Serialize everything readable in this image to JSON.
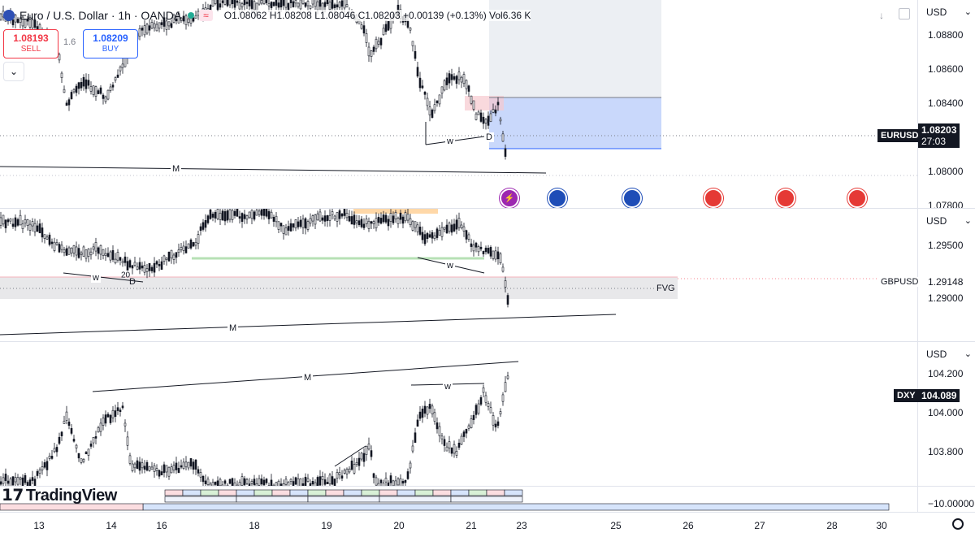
{
  "header": {
    "title": "Euro / U.S. Dollar · 1h · OANDA",
    "ohlc": "O1.08062 H1.08208 L1.08046 C1.08203 +0.00139 (+0.13%) Vol6.36 K"
  },
  "trade": {
    "sell_price": "1.08193",
    "sell_label": "SELL",
    "spread": "1.6",
    "buy_price": "1.08209",
    "buy_label": "BUY"
  },
  "panes": {
    "eurusd": {
      "unit": "USD",
      "ticks": [
        "1.08800",
        "1.08600",
        "1.08400",
        "1.08000",
        "1.07800"
      ],
      "symbol": "EURUSD",
      "price": "1.08203",
      "countdown": "27:03",
      "annotations": {
        "w": "w",
        "d": "D",
        "m": "M"
      }
    },
    "gbpusd": {
      "unit": "USD",
      "ticks": [
        "1.29500",
        "1.29000"
      ],
      "symbol": "GBPUSD",
      "price": "1.29148",
      "fvg": "FVG",
      "annotations": {
        "w1": "w",
        "d1": "D",
        "w2": "w",
        "m": "M",
        "twenty": "20"
      }
    },
    "dxy": {
      "unit": "USD",
      "ticks": [
        "104.200",
        "104.000",
        "103.800"
      ],
      "symbol": "DXY",
      "price": "104.089",
      "annotations": {
        "m": "M",
        "w": "w"
      }
    },
    "oscillator": {
      "tick": "−10.00000"
    }
  },
  "watermark": "TradingView",
  "time_axis": [
    "13",
    "14",
    "16",
    "18",
    "19",
    "20",
    "21",
    "23",
    "25",
    "26",
    "27",
    "28",
    "30"
  ],
  "events": [
    {
      "icon": "lightning-event-icon",
      "color": "#9c27b0"
    },
    {
      "icon": "eu-flag-icon",
      "color": "#1e4db7"
    },
    {
      "icon": "eu-flag-icon",
      "color": "#1e4db7"
    },
    {
      "icon": "us-flag-icon",
      "color": "#e53935"
    },
    {
      "icon": "us-flag-icon",
      "color": "#e53935"
    },
    {
      "icon": "us-flag-icon",
      "color": "#e53935"
    }
  ],
  "colors": {
    "up": "#131722",
    "down": "#131722",
    "buy_blue": "#2962ff",
    "sell_red": "#f23645",
    "zone_blue": "#bcd0fb",
    "fvg_gray": "#e8e8ea",
    "orange_zone": "#ffd8a8",
    "green_line": "#b7e1b5"
  }
}
